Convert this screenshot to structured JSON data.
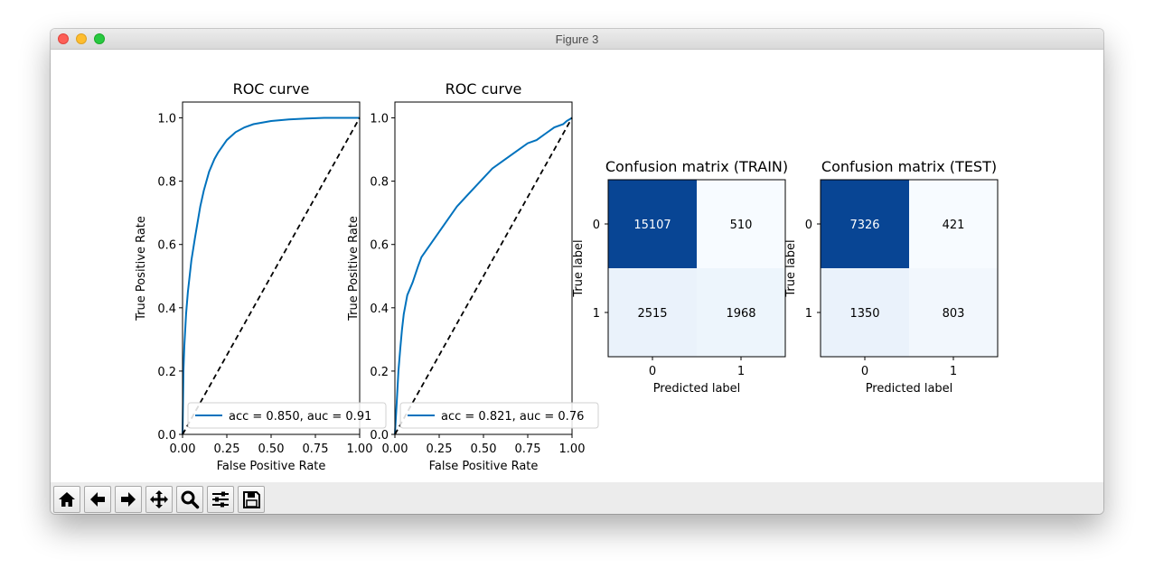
{
  "window": {
    "title": "Figure 3"
  },
  "toolbar": {
    "buttons": [
      {
        "icon": "home-icon"
      },
      {
        "icon": "back-arrow-icon"
      },
      {
        "icon": "forward-arrow-icon"
      },
      {
        "icon": "pan-icon"
      },
      {
        "icon": "zoom-icon"
      },
      {
        "icon": "configure-subplots-icon"
      },
      {
        "icon": "save-icon"
      }
    ]
  },
  "chart_data": [
    {
      "type": "line",
      "title": "ROC curve",
      "xlabel": "False Positive Rate",
      "ylabel": "True Positive Rate",
      "xlim": [
        0,
        1
      ],
      "ylim": [
        0,
        1.05
      ],
      "xticks": [
        "0.00",
        "0.25",
        "0.50",
        "0.75",
        "1.00"
      ],
      "yticks": [
        "0.0",
        "0.2",
        "0.4",
        "0.6",
        "0.8",
        "1.0"
      ],
      "legend_position": "lower-right",
      "series": [
        {
          "name": "acc = 0.850, auc = 0.91",
          "color": "#0072bd",
          "x": [
            0,
            0.005,
            0.01,
            0.02,
            0.03,
            0.05,
            0.07,
            0.1,
            0.12,
            0.15,
            0.18,
            0.2,
            0.25,
            0.3,
            0.35,
            0.4,
            0.5,
            0.6,
            0.7,
            0.8,
            0.9,
            1.0
          ],
          "y": [
            0,
            0.2,
            0.28,
            0.38,
            0.45,
            0.55,
            0.62,
            0.72,
            0.77,
            0.83,
            0.87,
            0.89,
            0.93,
            0.955,
            0.97,
            0.98,
            0.99,
            0.995,
            0.998,
            1.0,
            1.0,
            1.0
          ]
        },
        {
          "name": "",
          "color": "#000000",
          "dashed": true,
          "x": [
            0,
            1
          ],
          "y": [
            0,
            1
          ]
        }
      ]
    },
    {
      "type": "line",
      "title": "ROC curve",
      "xlabel": "False Positive Rate",
      "ylabel": "True Positive Rate",
      "xlim": [
        0,
        1
      ],
      "ylim": [
        0,
        1.05
      ],
      "xticks": [
        "0.00",
        "0.25",
        "0.50",
        "0.75",
        "1.00"
      ],
      "yticks": [
        "0.0",
        "0.2",
        "0.4",
        "0.6",
        "0.8",
        "1.0"
      ],
      "legend_position": "lower-right",
      "series": [
        {
          "name": "acc = 0.821, auc = 0.76",
          "color": "#0072bd",
          "x": [
            0,
            0.01,
            0.02,
            0.03,
            0.04,
            0.05,
            0.07,
            0.1,
            0.13,
            0.15,
            0.2,
            0.25,
            0.3,
            0.35,
            0.4,
            0.45,
            0.5,
            0.55,
            0.6,
            0.65,
            0.7,
            0.75,
            0.8,
            0.85,
            0.9,
            0.95,
            0.97,
            1.0
          ],
          "y": [
            0,
            0.1,
            0.2,
            0.27,
            0.33,
            0.38,
            0.44,
            0.48,
            0.53,
            0.56,
            0.6,
            0.64,
            0.68,
            0.72,
            0.75,
            0.78,
            0.81,
            0.84,
            0.86,
            0.88,
            0.9,
            0.92,
            0.93,
            0.95,
            0.97,
            0.98,
            0.99,
            1.0
          ]
        },
        {
          "name": "",
          "color": "#000000",
          "dashed": true,
          "x": [
            0,
            1
          ],
          "y": [
            0,
            1
          ]
        }
      ]
    },
    {
      "type": "heatmap",
      "title": "Confusion matrix (TRAIN)",
      "xlabel": "Predicted label",
      "ylabel": "True label",
      "colormap": "Blues",
      "x_categories": [
        "0",
        "1"
      ],
      "y_categories": [
        "0",
        "1"
      ],
      "values": [
        [
          15107,
          510
        ],
        [
          2515,
          1968
        ]
      ]
    },
    {
      "type": "heatmap",
      "title": "Confusion matrix (TEST)",
      "xlabel": "Predicted label",
      "ylabel": "True label",
      "colormap": "Blues",
      "x_categories": [
        "0",
        "1"
      ],
      "y_categories": [
        "0",
        "1"
      ],
      "values": [
        [
          7326,
          421
        ],
        [
          1350,
          803
        ]
      ]
    }
  ]
}
